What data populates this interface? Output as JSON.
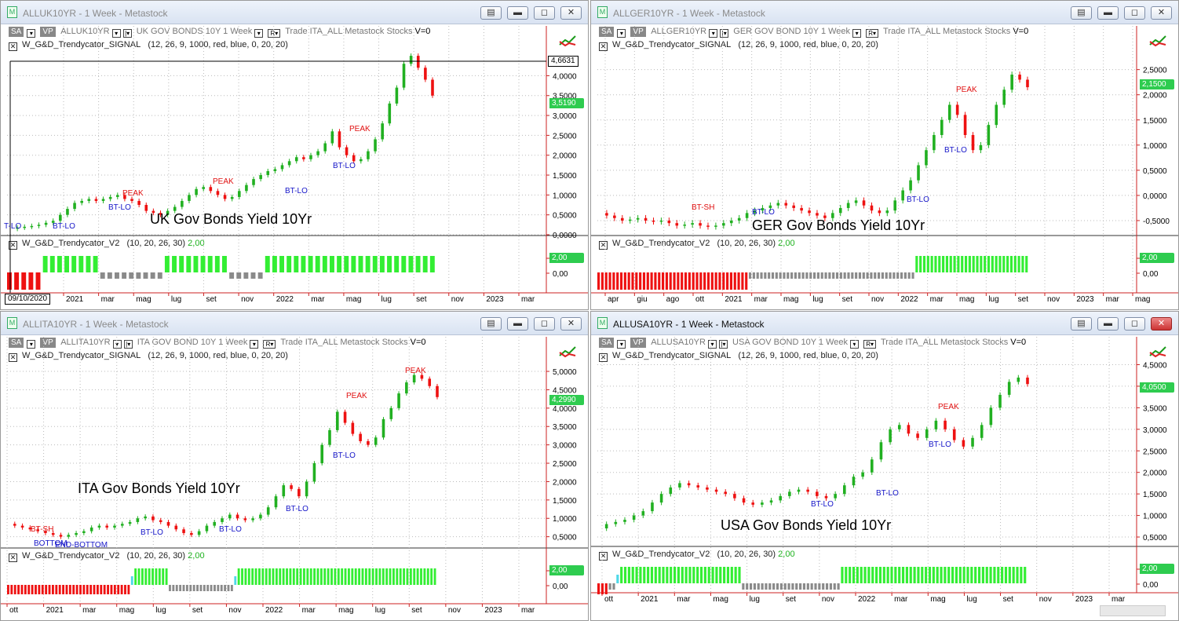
{
  "colors": {
    "up": "#21b021",
    "down": "#ee1111",
    "bull": "#33ee33",
    "bear": "#ee1111",
    "neutral": "#8a8a8a",
    "cyan": "#4fd8e8",
    "axis": "#cc2222"
  },
  "toolbar": {
    "sa": "SA",
    "vp": "VP",
    "r": "R",
    "trade": "Trade",
    "list": "ITA_ALL",
    "source": "Metastock",
    "type": "Stocks",
    "vzero": "V=0"
  },
  "panes": [
    {
      "id": "uk",
      "title": "ALLUK10YR - 1 Week - Metastock",
      "symbol": "ALLUK10YR",
      "desc": "UK GOV BONDS 10Y",
      "period": "1 Week",
      "ind1": "W_G&D_Trendycator_SIGNAL",
      "ind1_params": "(12,  26,  9,  1000,  red,  blue,  0,  20,  20)",
      "ind2": "W_G&D_Trendycator_V2",
      "ind2_params": "(10,  20,  26,  30)",
      "ind2_value": "2,00",
      "chart_label": "UK Gov Bonds Yield 10Yr",
      "price_tag": "3,5190",
      "cross_tag": "4,6631",
      "date_tag": "09/10/2020",
      "yticks": [
        "4,0000",
        "3,5000",
        "3,0000",
        "2,5000",
        "2,0000",
        "1,5000",
        "1,0000",
        "0,5000",
        "0,0000"
      ],
      "xticks": [
        "2021",
        "mar",
        "mag",
        "lug",
        "set",
        "nov",
        "2022",
        "mar",
        "mag",
        "lug",
        "set",
        "nov",
        "2023",
        "mar"
      ],
      "ind2_ticks": [
        "2,00",
        "0,00"
      ],
      "annotations": [
        {
          "t": "PEAK",
          "c": "red"
        },
        {
          "t": "BT-LO",
          "c": "blue"
        },
        {
          "t": "PEAK",
          "c": "red"
        },
        {
          "t": "BT-LO",
          "c": "blue"
        },
        {
          "t": "PEAK",
          "c": "red"
        },
        {
          "t": "BT-LO",
          "c": "blue"
        },
        {
          "t": "BT-LO",
          "c": "blue"
        },
        {
          "t": "T-LO",
          "c": "blue"
        }
      ],
      "series": [
        0.15,
        0.18,
        0.2,
        0.22,
        0.25,
        0.3,
        0.35,
        0.5,
        0.65,
        0.8,
        0.85,
        0.9,
        0.85,
        0.9,
        0.95,
        1.0,
        0.9,
        0.85,
        0.75,
        0.6,
        0.55,
        0.5,
        0.6,
        0.7,
        0.85,
        1.0,
        1.15,
        1.2,
        1.1,
        1.0,
        0.9,
        0.95,
        1.1,
        1.25,
        1.4,
        1.5,
        1.6,
        1.65,
        1.75,
        1.85,
        1.95,
        1.9,
        2.0,
        2.1,
        2.3,
        2.6,
        2.2,
        2.0,
        1.85,
        1.9,
        2.1,
        2.4,
        2.8,
        3.3,
        3.7,
        4.3,
        4.5,
        4.2,
        3.9,
        3.5
      ],
      "ind2_states": [
        "bear",
        "bear",
        "bear",
        "bear",
        "bear",
        "bull",
        "bull",
        "bull",
        "bull",
        "bull",
        "bull",
        "bull",
        "bull",
        "neutral",
        "neutral",
        "neutral",
        "neutral",
        "neutral",
        "neutral",
        "neutral",
        "neutral",
        "neutral",
        "bull",
        "bull",
        "bull",
        "bull",
        "bull",
        "bull",
        "bull",
        "bull",
        "bull",
        "neutral",
        "neutral",
        "neutral",
        "neutral",
        "neutral",
        "bull",
        "bull",
        "bull",
        "bull",
        "bull",
        "bull",
        "bull",
        "bull",
        "bull",
        "bull",
        "bull",
        "bull",
        "bull",
        "bull",
        "bull",
        "bull",
        "bull",
        "bull",
        "bull",
        "bull",
        "bull",
        "bull",
        "bull",
        "bull"
      ]
    },
    {
      "id": "ger",
      "title": "ALLGER10YR - 1 Week - Metastock",
      "symbol": "ALLGER10YR",
      "desc": "GER GOV BOND 10Y",
      "period": "1 Week",
      "ind1": "W_G&D_Trendycator_SIGNAL",
      "ind1_params": "(12,  26,  9,  1000,  red,  blue,  0,  20,  20)",
      "ind2": "W_G&D_Trendycator_V2",
      "ind2_params": "(10,  20,  26,  30)",
      "ind2_value": "2,00",
      "chart_label": "GER Gov Bonds Yield 10Yr",
      "price_tag": "2,1500",
      "yticks": [
        "2,5000",
        "2,0000",
        "1,5000",
        "1,0000",
        "0,5000",
        "0,0000",
        "-0,5000"
      ],
      "xticks": [
        "apr",
        "giu",
        "ago",
        "ott",
        "2021",
        "mar",
        "mag",
        "lug",
        "set",
        "nov",
        "2022",
        "mar",
        "mag",
        "lug",
        "set",
        "nov",
        "2023",
        "mar",
        "mag"
      ],
      "ind2_ticks": [
        "2,00",
        "0,00"
      ],
      "annotations": [
        {
          "t": "PEAK",
          "c": "red"
        },
        {
          "t": "BT-LO",
          "c": "blue"
        },
        {
          "t": "BT-LO",
          "c": "blue"
        },
        {
          "t": "BT-SH",
          "c": "red"
        },
        {
          "t": "BT-LO",
          "c": "blue"
        }
      ],
      "series": [
        -0.35,
        -0.4,
        -0.45,
        -0.5,
        -0.48,
        -0.45,
        -0.5,
        -0.52,
        -0.5,
        -0.55,
        -0.6,
        -0.58,
        -0.55,
        -0.6,
        -0.62,
        -0.6,
        -0.55,
        -0.5,
        -0.45,
        -0.35,
        -0.3,
        -0.25,
        -0.2,
        -0.15,
        -0.2,
        -0.25,
        -0.3,
        -0.35,
        -0.4,
        -0.45,
        -0.35,
        -0.25,
        -0.15,
        -0.1,
        -0.2,
        -0.3,
        -0.35,
        -0.3,
        -0.1,
        0.1,
        0.3,
        0.6,
        0.9,
        1.2,
        1.5,
        1.8,
        1.6,
        1.2,
        0.9,
        1.0,
        1.4,
        1.8,
        2.1,
        2.4,
        2.3,
        2.15
      ],
      "ind2_states": [
        "bear",
        "bear",
        "bear",
        "bear",
        "bear",
        "bear",
        "bear",
        "bear",
        "bear",
        "bear",
        "bear",
        "bear",
        "bear",
        "bear",
        "bear",
        "bear",
        "bear",
        "bear",
        "bear",
        "bear",
        "bear",
        "bear",
        "bear",
        "bear",
        "bear",
        "bear",
        "bear",
        "bear",
        "bear",
        "bear",
        "bear",
        "bear",
        "bear",
        "bear",
        "bear",
        "bear",
        "bear",
        "bear",
        "bear",
        "bear",
        "neutral",
        "neutral",
        "neutral",
        "neutral",
        "neutral",
        "neutral",
        "neutral",
        "neutral",
        "neutral",
        "neutral",
        "neutral",
        "neutral",
        "neutral",
        "neutral",
        "neutral",
        "neutral",
        "neutral",
        "neutral",
        "neutral",
        "neutral",
        "neutral",
        "neutral",
        "neutral",
        "neutral",
        "neutral",
        "neutral",
        "neutral",
        "neutral",
        "neutral",
        "neutral",
        "neutral",
        "neutral",
        "neutral",
        "neutral",
        "neutral",
        "neutral",
        "neutral",
        "neutral",
        "neutral",
        "neutral",
        "neutral",
        "neutral",
        "neutral",
        "neutral",
        "bull",
        "bull",
        "bull",
        "bull",
        "bull",
        "bull",
        "bull",
        "bull",
        "bull",
        "bull",
        "bull",
        "bull",
        "bull",
        "bull",
        "bull",
        "bull",
        "bull",
        "bull",
        "bull",
        "bull",
        "bull",
        "bull",
        "bull",
        "bull",
        "bull",
        "bull",
        "bull",
        "bull",
        "bull",
        "bull"
      ]
    },
    {
      "id": "ita",
      "title": "ALLITA10YR - 1 Week - Metastock",
      "symbol": "ALLITA10YR",
      "desc": "ITA GOV BOND 10Y",
      "period": "1 Week",
      "ind1": "W_G&D_Trendycator_SIGNAL",
      "ind1_params": "(12,  26,  9,  1000,  red,  blue,  0,  20,  20)",
      "ind2": "W_G&D_Trendycator_V2",
      "ind2_params": "(10,  20,  26,  30)",
      "ind2_value": "2,00",
      "chart_label": "ITA Gov Bonds Yield 10Yr",
      "price_tag": "4,2990",
      "yticks": [
        "5,0000",
        "4,5000",
        "4,0000",
        "3,5000",
        "3,0000",
        "2,5000",
        "2,0000",
        "1,5000",
        "1,0000",
        "0,5000"
      ],
      "xticks": [
        "ott",
        "2021",
        "mar",
        "mag",
        "lug",
        "set",
        "nov",
        "2022",
        "mar",
        "mag",
        "lug",
        "set",
        "nov",
        "2023",
        "mar"
      ],
      "ind2_ticks": [
        "2,00",
        "0,00"
      ],
      "annotations": [
        {
          "t": "PEAK",
          "c": "red"
        },
        {
          "t": "PEAK",
          "c": "red"
        },
        {
          "t": "BT-LO",
          "c": "blue"
        },
        {
          "t": "BT-LO",
          "c": "blue"
        },
        {
          "t": "BT-LO",
          "c": "blue"
        },
        {
          "t": "BT-LO",
          "c": "blue"
        },
        {
          "t": "BT-SH",
          "c": "red"
        },
        {
          "t": "BOTTOM",
          "c": "blue"
        },
        {
          "t": "END-BOTTOM",
          "c": "blue"
        }
      ],
      "series": [
        0.85,
        0.8,
        0.75,
        0.7,
        0.65,
        0.6,
        0.55,
        0.5,
        0.55,
        0.6,
        0.65,
        0.75,
        0.8,
        0.75,
        0.8,
        0.85,
        0.9,
        1.0,
        1.05,
        0.95,
        0.9,
        0.8,
        0.7,
        0.6,
        0.55,
        0.65,
        0.8,
        0.9,
        1.0,
        1.1,
        1.0,
        0.95,
        1.0,
        1.1,
        1.3,
        1.6,
        1.9,
        1.8,
        1.6,
        2.0,
        2.5,
        3.0,
        3.4,
        3.9,
        3.6,
        3.3,
        3.1,
        3.0,
        3.2,
        3.7,
        4.0,
        4.4,
        4.7,
        4.9,
        4.8,
        4.6,
        4.3
      ],
      "ind2_states": [
        "bear",
        "bear",
        "bear",
        "bear",
        "bear",
        "bear",
        "bear",
        "bear",
        "bear",
        "bear",
        "bear",
        "bear",
        "bear",
        "bear",
        "bear",
        "bear",
        "bear",
        "bear",
        "bear",
        "bear",
        "bear",
        "bear",
        "bear",
        "bear",
        "bear",
        "bear",
        "bear",
        "bear",
        "bear",
        "bear",
        "bear",
        "bear",
        "bear",
        "bear",
        "bear",
        "bear",
        "cyan",
        "bull",
        "bull",
        "bull",
        "bull",
        "bull",
        "bull",
        "bull",
        "bull",
        "bull",
        "bull",
        "neutral",
        "neutral",
        "neutral",
        "neutral",
        "neutral",
        "neutral",
        "neutral",
        "neutral",
        "neutral",
        "neutral",
        "neutral",
        "neutral",
        "neutral",
        "neutral",
        "neutral",
        "neutral",
        "neutral",
        "neutral",
        "neutral",
        "cyan",
        "bull",
        "bull",
        "bull",
        "bull",
        "bull",
        "bull",
        "bull",
        "bull",
        "bull",
        "bull",
        "bull",
        "bull",
        "bull",
        "bull",
        "bull",
        "bull",
        "bull",
        "bull",
        "bull",
        "bull",
        "bull",
        "bull",
        "bull",
        "bull",
        "bull",
        "bull",
        "bull",
        "bull",
        "bull",
        "bull",
        "bull",
        "bull",
        "bull",
        "bull",
        "bull",
        "bull",
        "bull",
        "bull",
        "bull",
        "bull",
        "bull",
        "bull",
        "bull",
        "bull",
        "bull",
        "bull",
        "bull",
        "bull",
        "bull",
        "bull",
        "bull",
        "bull",
        "bull",
        "bull",
        "bull",
        "bull",
        "bull",
        "bull"
      ]
    },
    {
      "id": "usa",
      "title": "ALLUSA10YR - 1 Week - Metastock",
      "symbol": "ALLUSA10YR",
      "desc": "USA GOV BOND 10Y",
      "period": "1 Week",
      "ind1": "W_G&D_Trendycator_SIGNAL",
      "ind1_params": "(12,  26,  9,  1000,  red,  blue,  0,  20,  20)",
      "ind2": "W_G&D_Trendycator_V2",
      "ind2_params": "(10,  20,  26,  30)",
      "ind2_value": "2,00",
      "chart_label": "USA Gov Bonds Yield 10Yr",
      "price_tag": "4,0500",
      "yticks": [
        "4,5000",
        "4,0000",
        "3,5000",
        "3,0000",
        "2,5000",
        "2,0000",
        "1,5000",
        "1,0000",
        "0,5000"
      ],
      "xticks": [
        "ott",
        "2021",
        "mar",
        "mag",
        "lug",
        "set",
        "nov",
        "2022",
        "mar",
        "mag",
        "lug",
        "set",
        "nov",
        "2023",
        "mar"
      ],
      "ind2_ticks": [
        "2,00",
        "0,00"
      ],
      "annotations": [
        {
          "t": "PEAK",
          "c": "red"
        },
        {
          "t": "BT-LO",
          "c": "blue"
        },
        {
          "t": "BT-LO",
          "c": "blue"
        },
        {
          "t": "BT-LO",
          "c": "blue"
        }
      ],
      "series": [
        0.7,
        0.8,
        0.85,
        0.9,
        1.0,
        1.1,
        1.3,
        1.5,
        1.65,
        1.75,
        1.7,
        1.65,
        1.6,
        1.55,
        1.5,
        1.4,
        1.3,
        1.25,
        1.3,
        1.35,
        1.45,
        1.55,
        1.6,
        1.55,
        1.45,
        1.4,
        1.5,
        1.7,
        1.9,
        2.0,
        2.3,
        2.7,
        3.0,
        3.1,
        2.9,
        2.8,
        3.0,
        3.2,
        3.0,
        2.75,
        2.6,
        2.8,
        3.1,
        3.5,
        3.8,
        4.1,
        4.2,
        4.05
      ],
      "ind2_states": [
        "bear",
        "bear",
        "bear",
        "neutral",
        "neutral",
        "cyan",
        "bull",
        "bull",
        "bull",
        "bull",
        "bull",
        "bull",
        "bull",
        "bull",
        "bull",
        "bull",
        "bull",
        "bull",
        "bull",
        "bull",
        "bull",
        "bull",
        "bull",
        "bull",
        "bull",
        "bull",
        "bull",
        "bull",
        "bull",
        "bull",
        "bull",
        "bull",
        "bull",
        "bull",
        "bull",
        "bull",
        "bull",
        "bull",
        "neutral",
        "neutral",
        "neutral",
        "neutral",
        "neutral",
        "neutral",
        "neutral",
        "neutral",
        "neutral",
        "neutral",
        "neutral",
        "neutral",
        "neutral",
        "neutral",
        "neutral",
        "neutral",
        "neutral",
        "neutral",
        "neutral",
        "neutral",
        "neutral",
        "neutral",
        "neutral",
        "neutral",
        "neutral",
        "neutral",
        "bull",
        "bull",
        "bull",
        "bull",
        "bull",
        "bull",
        "bull",
        "bull",
        "bull",
        "bull",
        "bull",
        "bull",
        "bull",
        "bull",
        "bull",
        "bull",
        "bull",
        "bull",
        "bull",
        "bull",
        "bull",
        "bull",
        "bull",
        "bull",
        "bull",
        "bull",
        "bull",
        "bull",
        "bull",
        "bull",
        "bull",
        "bull",
        "bull",
        "bull",
        "bull",
        "bull",
        "bull",
        "bull",
        "bull",
        "bull",
        "bull",
        "bull",
        "bull",
        "bull",
        "bull",
        "bull",
        "bull",
        "bull",
        "bull"
      ]
    }
  ]
}
